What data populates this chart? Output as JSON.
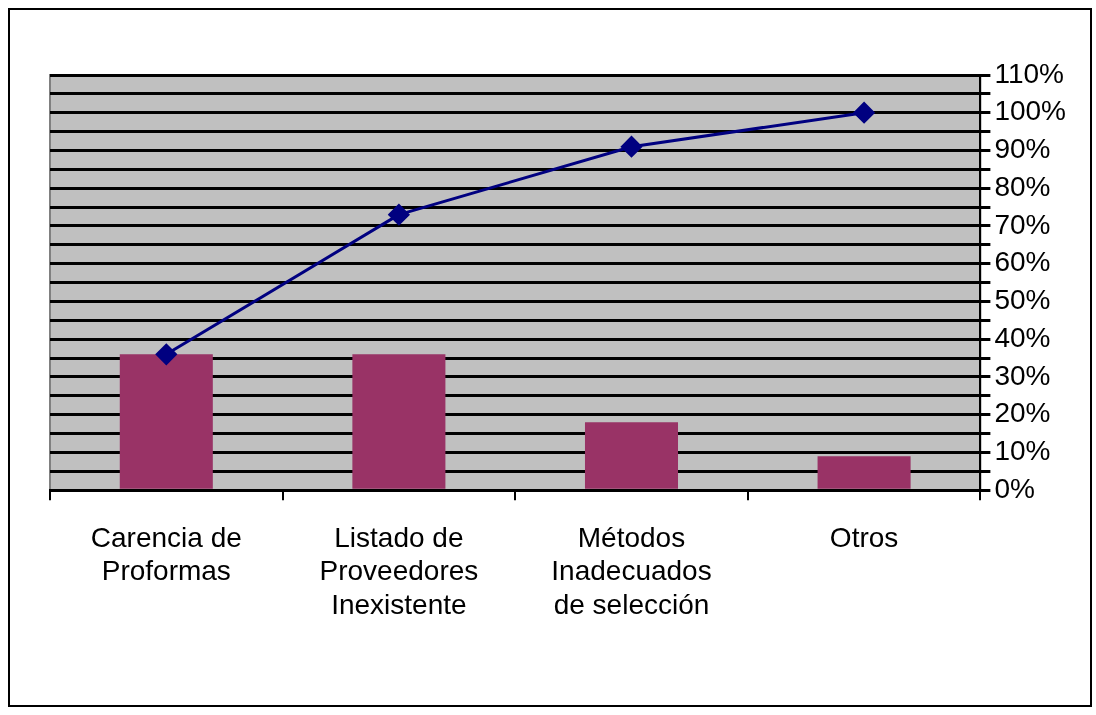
{
  "chart_data": {
    "type": "bar",
    "categories": [
      "Carencia de Proformas",
      "Listado de Proveedores Inexistente",
      "Métodos Inadecuados de selección",
      "Otros"
    ],
    "series": [
      {
        "color": "#993366",
        "values": [
          36,
          36,
          18,
          9
        ]
      },
      {
        "type": "line",
        "color": "#000080",
        "values": [
          36,
          73,
          91,
          100
        ],
        "marker": "diamond"
      }
    ],
    "ylim": [
      0,
      110
    ],
    "yticks": [
      {
        "value": 0,
        "label": "0%"
      },
      {
        "value": 5,
        "label": null
      },
      {
        "value": 10,
        "label": "10%"
      },
      {
        "value": 15,
        "label": null
      },
      {
        "value": 20,
        "label": "20%"
      },
      {
        "value": 25,
        "label": null
      },
      {
        "value": 30,
        "label": "30%"
      },
      {
        "value": 35,
        "label": null
      },
      {
        "value": 40,
        "label": "40%"
      },
      {
        "value": 45,
        "label": null
      },
      {
        "value": 50,
        "label": "50%"
      },
      {
        "value": 55,
        "label": null
      },
      {
        "value": 60,
        "label": "60%"
      },
      {
        "value": 65,
        "label": null
      },
      {
        "value": 70,
        "label": "70%"
      },
      {
        "value": 75,
        "label": null
      },
      {
        "value": 80,
        "label": "80%"
      },
      {
        "value": 85,
        "label": null
      },
      {
        "value": 90,
        "label": "90%"
      },
      {
        "value": 95,
        "label": null
      },
      {
        "value": 100,
        "label": "100%"
      },
      {
        "value": 105,
        "label": null
      },
      {
        "value": 110,
        "label": "110%"
      }
    ],
    "grid": "y"
  }
}
